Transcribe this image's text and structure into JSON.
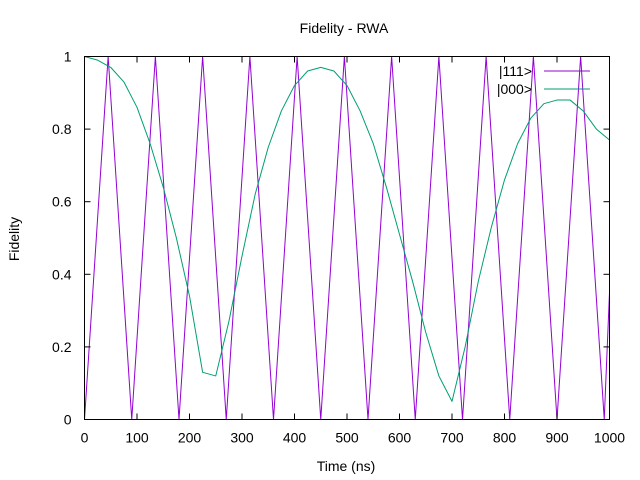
{
  "chart_data": {
    "type": "line",
    "title": "Fidelity - RWA",
    "xlabel": "Time (ns)",
    "ylabel": "Fidelity",
    "xlim": [
      0,
      1000
    ],
    "ylim": [
      0,
      1
    ],
    "xticks": [
      0,
      100,
      200,
      300,
      400,
      500,
      600,
      700,
      800,
      900,
      1000
    ],
    "yticks": [
      0,
      0.2,
      0.4,
      0.6,
      0.8,
      1
    ],
    "ytick_labels": [
      "0",
      "0.2",
      "0.4",
      "0.6",
      "0.8",
      "1"
    ],
    "grid": false,
    "legend_position": "top-right",
    "series": [
      {
        "name": "|111>",
        "color": "#9400d3",
        "x": [
          0,
          22.5,
          45,
          67.5,
          90,
          112.5,
          135,
          157.5,
          180,
          202.5,
          225,
          247.5,
          270,
          292.5,
          315,
          337.5,
          360,
          382.5,
          405,
          427.5,
          450,
          472.5,
          495,
          517.5,
          540,
          562.5,
          585,
          607.5,
          630,
          652.5,
          675,
          697.5,
          720,
          742.5,
          765,
          787.5,
          810,
          832.5,
          855,
          877.5,
          900,
          922.5,
          945,
          967.5,
          990,
          1000
        ],
        "y": [
          0,
          0.5,
          1,
          0.5,
          0,
          0.5,
          1,
          0.5,
          0,
          0.5,
          1,
          0.5,
          0,
          0.5,
          1,
          0.5,
          0,
          0.5,
          1,
          0.5,
          0,
          0.5,
          1,
          0.5,
          0,
          0.5,
          1,
          0.5,
          0,
          0.5,
          1,
          0.5,
          0,
          0.5,
          1,
          0.5,
          0,
          0.5,
          1,
          0.5,
          0,
          0.5,
          1,
          0.5,
          0,
          0.35
        ]
      },
      {
        "name": "|000>",
        "color": "#009e73",
        "x": [
          0,
          25,
          50,
          75,
          100,
          125,
          150,
          175,
          200,
          225,
          250,
          275,
          300,
          325,
          350,
          375,
          400,
          425,
          450,
          475,
          500,
          525,
          550,
          575,
          600,
          625,
          650,
          675,
          700,
          725,
          750,
          775,
          800,
          825,
          850,
          875,
          900,
          925,
          950,
          975,
          1000
        ],
        "y": [
          1,
          0.99,
          0.97,
          0.93,
          0.86,
          0.76,
          0.64,
          0.5,
          0.34,
          0.13,
          0.12,
          0.27,
          0.45,
          0.62,
          0.75,
          0.85,
          0.92,
          0.96,
          0.97,
          0.96,
          0.92,
          0.85,
          0.76,
          0.64,
          0.51,
          0.38,
          0.24,
          0.12,
          0.05,
          0.2,
          0.38,
          0.53,
          0.66,
          0.76,
          0.83,
          0.87,
          0.88,
          0.88,
          0.85,
          0.8,
          0.77
        ]
      }
    ]
  }
}
